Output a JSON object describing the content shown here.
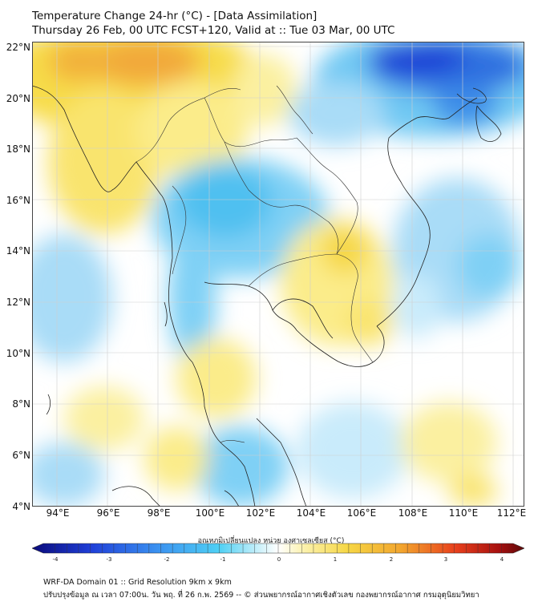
{
  "header": {
    "title_line1": "Temperature Change 24-hr (°C) - [Data Assimilation]",
    "title_line2": "Thursday 26 Feb, 00 UTC FCST+120, Valid at :: Tue 03 Mar, 00 UTC"
  },
  "map": {
    "lat_labels": [
      "22°N",
      "20°N",
      "18°N",
      "16°N",
      "14°N",
      "12°N",
      "10°N",
      "8°N",
      "6°N",
      "4°N"
    ],
    "lon_labels": [
      "94°E",
      "96°E",
      "98°E",
      "100°E",
      "102°E",
      "104°E",
      "106°E",
      "108°E",
      "110°E",
      "112°E"
    ],
    "lat_range": [
      4,
      22.2
    ],
    "lon_range": [
      93,
      112.4
    ],
    "colors": {
      "cold_strong": "#1a3fd6",
      "cold": "#4fb8f0",
      "cool": "#a9dcf7",
      "neutral": "#ffffff",
      "warm_light": "#fbf3a6",
      "warm": "#f7dc4a",
      "hot": "#f2a93a"
    }
  },
  "colorbar": {
    "label": "อุณหภูมิเปลี่ยนแปลง หน่วย องศาเซลเซียส (°C)",
    "range": [
      -4,
      4
    ],
    "ticks": [
      "-4",
      "-3",
      "-2",
      "-1",
      "0",
      "1",
      "2",
      "3",
      "4"
    ],
    "stops": [
      "#0a0a7a",
      "#1f3fd8",
      "#3a8ff0",
      "#4fd0f4",
      "#d8f4fb",
      "#ffffff",
      "#fbf2b0",
      "#f6d745",
      "#f2a52e",
      "#e8401c",
      "#a50f0f",
      "#5c0a0a"
    ]
  },
  "footer": {
    "line1": "WRF-DA Domain 01 :: Grid Resolution 9km x 9km",
    "line2": "ปรับปรุงข้อมูล ณ เวลา 07:00น. วัน พฤ. ที่ 26 ก.พ. 2569 -- © ส่วนพยากรณ์อากาศเชิงตัวเลข กองพยากรณ์อากาศ กรมอุตุนิยมวิทยา"
  }
}
